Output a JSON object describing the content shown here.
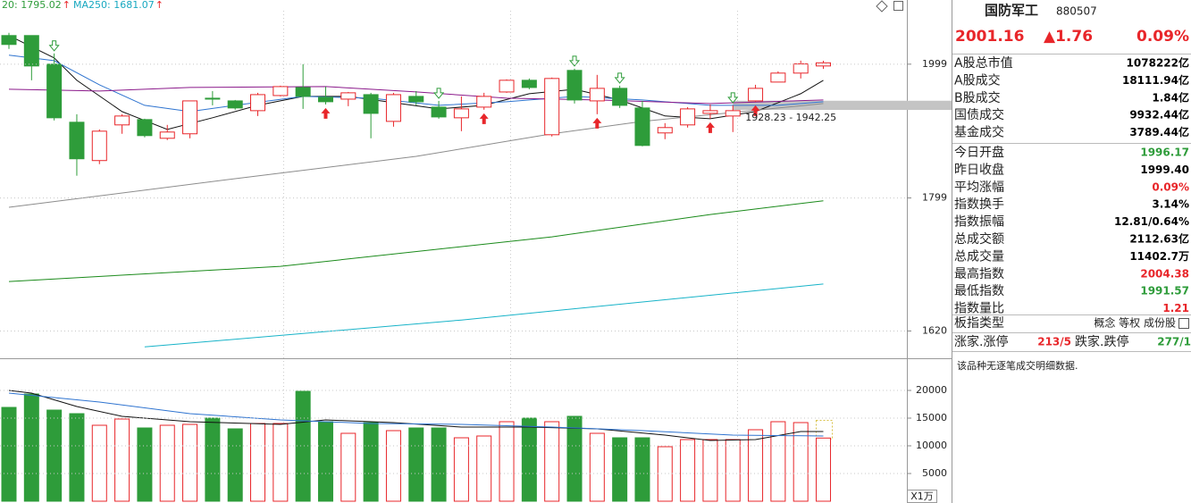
{
  "chart_data": [
    {
      "type": "candlestick",
      "header": [
        {
          "text": "20: 1795.02",
          "arrow": "↑",
          "color": "#2e9c3a"
        },
        {
          "text": "MA250: 1681.07",
          "arrow": "↑",
          "color": "#17a8c0"
        }
      ],
      "open": [
        2044.6,
        2044.6,
        1999,
        1909.6,
        1852.8,
        1905.6,
        1913.6,
        1885.6,
        1892.3,
        1946.1,
        1942.0,
        1927.1,
        1950.2,
        1962.6,
        1947.5,
        1944.7,
        1951.6,
        1910.9,
        1948.9,
        1932.5,
        1916.3,
        1932.5,
        1955.7,
        1973.8,
        1890.9,
        1989.2,
        1942.0,
        1961.3,
        1931.2,
        1893.6,
        1905.6,
        1923.0,
        1919.0,
        1942.0,
        1971.0,
        1985.0,
        1996.17
      ],
      "high": [
        2049.0,
        2044.6,
        2016.0,
        1921.7,
        1898.9,
        1921.7,
        1914.9,
        1905.6,
        1942.0,
        1957.1,
        1943.4,
        1954.4,
        1965.4,
        1999,
        1964.0,
        1955.7,
        1954.4,
        1954.4,
        1957.1,
        1942.0,
        1948.9,
        1954.4,
        1975.2,
        1976.6,
        1978.0,
        1992.0,
        1982.2,
        1965.4,
        1942.0,
        1908.3,
        1932.5,
        1936.6,
        1935.2,
        1966.8,
        1987.8,
        2004.6,
        2004.38
      ],
      "low": [
        2023.1,
        1973.8,
        1912.3,
        1830.8,
        1847.6,
        1892.3,
        1887.0,
        1883.0,
        1885.6,
        1935.2,
        1928.5,
        1919.0,
        1948.9,
        1929.8,
        1936.6,
        1933.9,
        1885.6,
        1902.9,
        1935.2,
        1914.9,
        1896.2,
        1928.5,
        1954.4,
        1959.9,
        1888.3,
        1938.0,
        1921.7,
        1931.2,
        1873.7,
        1884.3,
        1901.6,
        1914.9,
        1894.9,
        1940.7,
        1971.0,
        1976.6,
        1991.57
      ],
      "close": [
        2030.3,
        1996.2,
        1916.3,
        1855.4,
        1896.2,
        1919.0,
        1889.6,
        1894.9,
        1942.0,
        1944.7,
        1931.2,
        1951.6,
        1964.0,
        1948.9,
        1940.7,
        1954.4,
        1923.0,
        1951.6,
        1940.7,
        1917.6,
        1929.8,
        1948.9,
        1973.8,
        1962.6,
        1976.6,
        1943.4,
        1961.3,
        1935.2,
        1875.0,
        1901.6,
        1929.8,
        1927.1,
        1927.1,
        1961.3,
        1985.0,
        1999.4,
        2001.16
      ],
      "up_color": "#e8262a",
      "down_color": "#2e9c3a",
      "lines": [
        {
          "color": "#111111",
          "x": [
            0,
            2,
            3,
            5,
            7,
            9,
            11,
            13,
            15,
            17,
            19,
            21,
            23,
            25,
            27,
            29,
            31,
            33,
            35,
            36
          ],
          "values": [
            2044.6,
            2008.9,
            1973.8,
            1925.7,
            1898.9,
            1916.3,
            1935.2,
            1948.9,
            1948.9,
            1939.3,
            1929.8,
            1935.2,
            1953.0,
            1959.9,
            1943.4,
            1919.0,
            1914.9,
            1925.7,
            1953.0,
            1973.8
          ]
        },
        {
          "color": "#2f74d0",
          "x": [
            0,
            2,
            4,
            6,
            8,
            10,
            13,
            16,
            19,
            22,
            25,
            28,
            31,
            34,
            36
          ],
          "values": [
            2013.1,
            2004.6,
            1966.8,
            1935.2,
            1925.7,
            1935.2,
            1948.9,
            1946.1,
            1935.2,
            1940.7,
            1948.9,
            1943.4,
            1935.2,
            1935.2,
            1940.7
          ]
        },
        {
          "color": "#8b1a8b",
          "x": [
            0,
            4,
            8,
            14,
            18,
            22,
            26,
            31,
            36
          ],
          "values": [
            1959.9,
            1957.1,
            1962.6,
            1964.0,
            1955.7,
            1946.1,
            1943.4,
            1938.0,
            1943.4
          ]
        },
        {
          "color": "#8c8c8c",
          "x": [
            0,
            10,
            18,
            24,
            28,
            32,
            36
          ],
          "values": [
            1785.8,
            1826.5,
            1859.0,
            1892.3,
            1910.9,
            1924.4,
            1937.9
          ]
        },
        {
          "color": "#1a8a1a",
          "x": [
            0,
            12,
            24,
            31,
            36
          ],
          "values": [
            1684.4,
            1704.6,
            1744.7,
            1775.7,
            1795.02
          ]
        },
        {
          "color": "#17b3c8",
          "x": [
            6,
            20,
            36
          ],
          "values": [
            1599.8,
            1634.0,
            1681.07
          ]
        }
      ],
      "buy_signals": [
        14,
        21,
        26,
        31,
        33
      ],
      "sell_signals": [
        2,
        19,
        25,
        27,
        32
      ],
      "range_band": {
        "low": 1928.23,
        "high": 1942.25,
        "label": "1928.23 - 1942.25"
      },
      "ylim": [
        1590,
        2085
      ],
      "yticks": [
        1999,
        1799,
        1620
      ],
      "log_scale": true,
      "grid": true
    },
    {
      "type": "bar",
      "values": [
        16935,
        19355,
        16452,
        15806,
        13710,
        14839,
        13226,
        13710,
        13871,
        15000,
        13065,
        14032,
        14032,
        19839,
        14355,
        12258,
        14194,
        12742,
        13226,
        13226,
        11452,
        11774,
        14355,
        15000,
        14355,
        15323,
        12258,
        11452,
        11452,
        9839,
        11129,
        11129,
        11129,
        12903,
        14355,
        14194,
        11402.7
      ],
      "lines": [
        {
          "color": "#111111",
          "x": [
            0,
            1,
            3,
            5,
            8,
            12,
            14,
            17,
            20,
            23,
            26,
            29,
            31,
            33,
            35,
            36
          ],
          "values": [
            20000,
            19516,
            17097,
            15323,
            14355,
            13871,
            14677,
            14194,
            13387,
            13387,
            13065,
            11935,
            10968,
            11129,
            12581,
            12581
          ]
        },
        {
          "color": "#2f74d0",
          "x": [
            0,
            4,
            8,
            12,
            16,
            20,
            24,
            28,
            32,
            36
          ],
          "values": [
            19516,
            17903,
            15806,
            14677,
            14032,
            13871,
            13387,
            12742,
            11935,
            11774
          ]
        }
      ],
      "ylim": [
        0,
        25000
      ],
      "yticks": [
        20000,
        15000,
        10000,
        5000
      ],
      "unit": "X1万",
      "grid": true
    }
  ],
  "panel": {
    "title": "国防军工",
    "code": "880507",
    "price": "2001.16",
    "change": "▲1.76",
    "change_pct": "0.09%",
    "rows": [
      {
        "label": "A股总市值",
        "value": "1078222亿",
        "color": "#000000"
      },
      {
        "label": "A股成交",
        "value": "18111.94亿",
        "color": "#000000"
      },
      {
        "label": "B股成交",
        "value": "1.84亿",
        "color": "#000000"
      },
      {
        "label": "国债成交",
        "value": "9932.44亿",
        "color": "#000000"
      },
      {
        "label": "基金成交",
        "value": "3789.44亿",
        "color": "#000000"
      },
      {
        "label": "今日开盘",
        "value": "1996.17",
        "color": "#2e9c3a"
      },
      {
        "label": "昨日收盘",
        "value": "1999.40",
        "color": "#000000"
      },
      {
        "label": "平均涨幅",
        "value": "0.09%",
        "color": "#e8262a"
      },
      {
        "label": "指数换手",
        "value": "3.14%",
        "color": "#000000"
      },
      {
        "label": "指数振幅",
        "value": "12.81/0.64%",
        "color": "#000000"
      },
      {
        "label": "总成交额",
        "value": "2112.63亿",
        "color": "#000000"
      },
      {
        "label": "总成交量",
        "value": "11402.7万",
        "color": "#000000"
      },
      {
        "label": "最高指数",
        "value": "2004.38",
        "color": "#e8262a"
      },
      {
        "label": "最低指数",
        "value": "1991.57",
        "color": "#2e9c3a"
      },
      {
        "label": "指数量比",
        "value": "1.21",
        "color": "#e8262a"
      }
    ],
    "type_row": {
      "label": "板指类型",
      "value": "概念 等权 成份股"
    },
    "breadth": {
      "up_label": "涨家.涨停",
      "up_value": "213/5",
      "down_label": "跌家.跌停",
      "down_value": "277/1"
    },
    "note": "该品种无逐笔成交明细数据."
  }
}
